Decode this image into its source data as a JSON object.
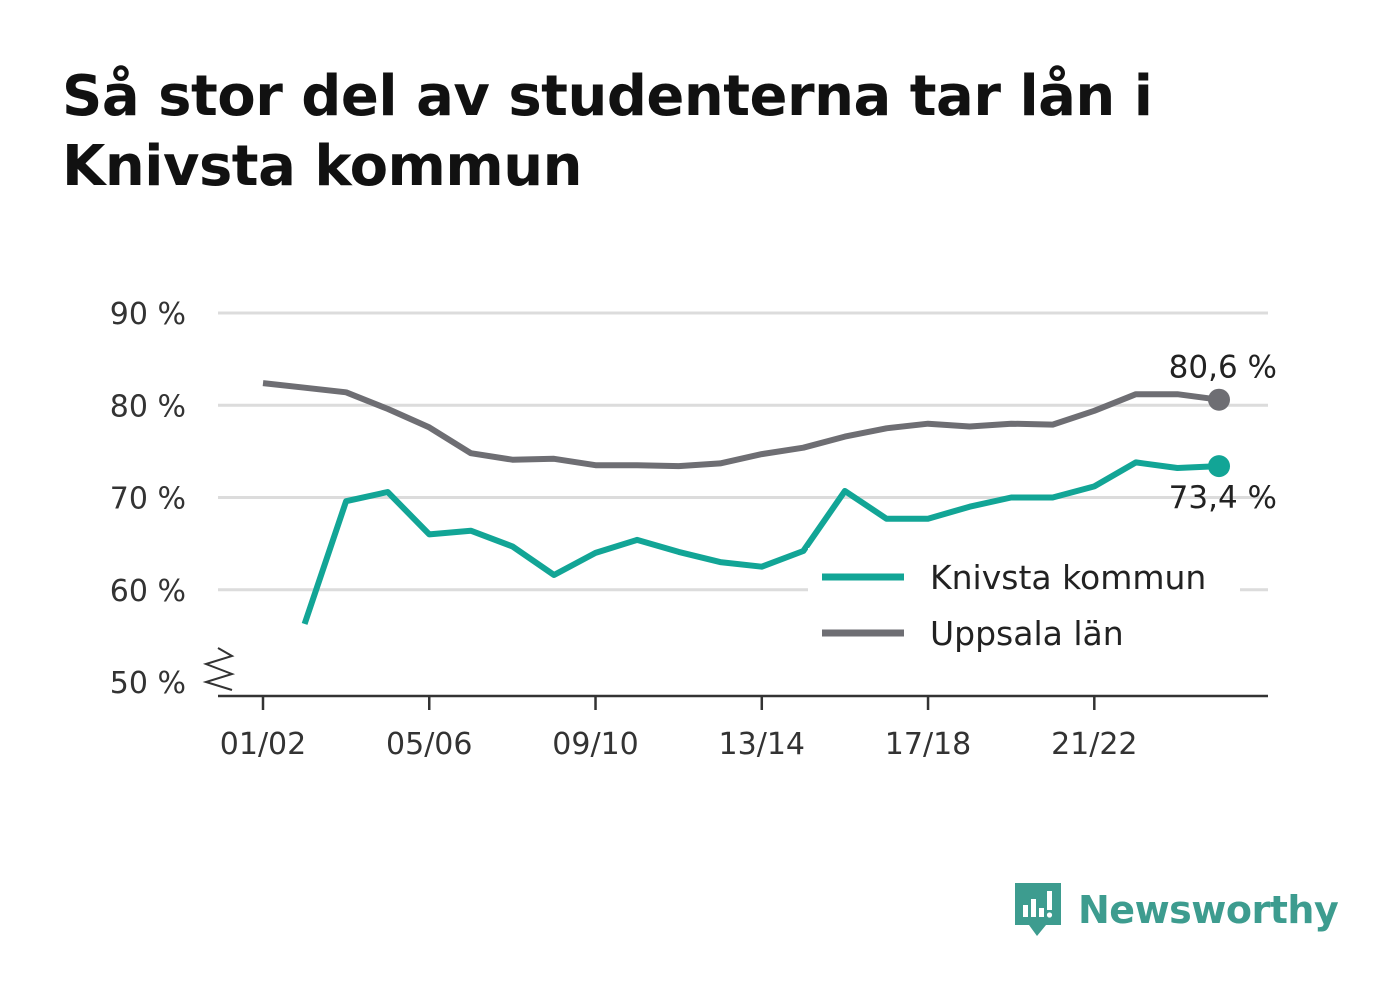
{
  "title": "Så stor del av studenterna tar lån i Knivsta kommun",
  "brand": {
    "name": "Newsworthy",
    "icon": "newsworthy-logo-icon"
  },
  "colors": {
    "knivsta": "#12a596",
    "uppsala": "#6e6e73",
    "grid": "#dcdcdc",
    "axis": "#333333"
  },
  "chart_data": {
    "type": "line",
    "title": "Så stor del av studenterna tar lån i Knivsta kommun",
    "xlabel": "",
    "ylabel": "",
    "ylim": [
      50,
      90
    ],
    "yticks": [
      50,
      60,
      70,
      80,
      90
    ],
    "ytick_labels": [
      "50 %",
      "60 %",
      "70 %",
      "80 %",
      "90 %"
    ],
    "y_axis_break": true,
    "grid": true,
    "legend_position": "bottom-right",
    "x": [
      "01/02",
      "02/03",
      "03/04",
      "04/05",
      "05/06",
      "06/07",
      "07/08",
      "08/09",
      "09/10",
      "10/11",
      "11/12",
      "12/13",
      "13/14",
      "14/15",
      "15/16",
      "16/17",
      "17/18",
      "18/19",
      "19/20",
      "20/21",
      "21/22",
      "22/23",
      "23/24",
      "24/25"
    ],
    "xtick_labels": [
      "01/02",
      "05/06",
      "09/10",
      "13/14",
      "17/18",
      "21/22"
    ],
    "series": [
      {
        "name": "Knivsta kommun",
        "color": "#12a596",
        "values": [
          null,
          56.3,
          69.6,
          70.6,
          66.0,
          66.4,
          64.7,
          61.6,
          64.0,
          65.4,
          64.1,
          63.0,
          62.5,
          64.2,
          70.7,
          67.7,
          67.7,
          69.0,
          70.0,
          70.0,
          71.2,
          73.8,
          73.2,
          73.4
        ],
        "end_label": "73,4 %"
      },
      {
        "name": "Uppsala län",
        "color": "#6e6e73",
        "values": [
          82.4,
          81.9,
          81.4,
          79.6,
          77.6,
          74.8,
          74.1,
          74.2,
          73.5,
          73.5,
          73.4,
          73.7,
          74.7,
          75.4,
          76.6,
          77.5,
          78.0,
          77.7,
          78.0,
          77.9,
          79.4,
          81.2,
          81.2,
          80.6
        ],
        "end_label": "80,6 %"
      }
    ]
  }
}
